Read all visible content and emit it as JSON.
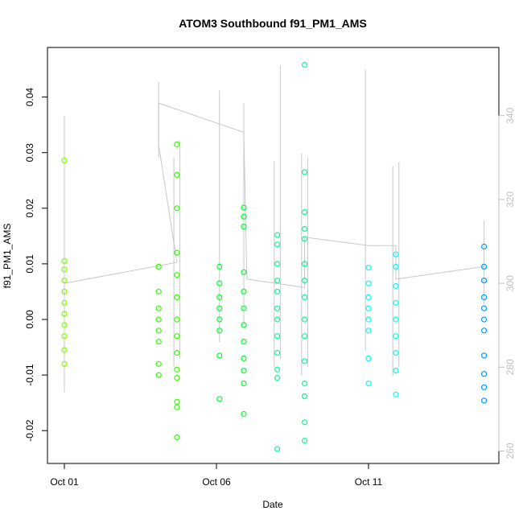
{
  "chart_data": {
    "type": "scatter",
    "title": "ATOM3 Southbound f91_PM1_AMS",
    "xlabel": "Date",
    "ylabel": "f91_PM1_AMS",
    "x_ticks": [
      "Oct 01",
      "Oct 06",
      "Oct 11"
    ],
    "x_tick_days": [
      1,
      6,
      11
    ],
    "xlim": [
      0.0,
      15.6
    ],
    "ylim": [
      -0.026,
      0.047
    ],
    "y_ticks": [
      -0.02,
      -0.01,
      0.0,
      0.01,
      0.02,
      0.03,
      0.04
    ],
    "y2_ticks": [
      260,
      280,
      300,
      320,
      340
    ],
    "y2lim": [
      256,
      355
    ],
    "grid": false,
    "series": [
      {
        "color": "#7FFF00",
        "x": [
          1.0,
          1.0,
          1.0,
          1.0,
          1.0,
          1.0,
          1.0,
          1.0,
          1.0,
          1.0,
          1.0
        ],
        "y": [
          0.0286,
          0.0105,
          0.009,
          0.007,
          0.005,
          0.003,
          0.001,
          -0.001,
          -0.003,
          -0.0055,
          -0.008
        ]
      },
      {
        "color": "#33FF00",
        "x": [
          4.1,
          4.1,
          4.1,
          4.1,
          4.1,
          4.1,
          4.1,
          4.1,
          4.7,
          4.7,
          4.7,
          4.7,
          4.7,
          4.7,
          4.7,
          4.7,
          4.7,
          4.7,
          4.7,
          4.7,
          4.7,
          4.7
        ],
        "y": [
          0.0095,
          0.005,
          0.002,
          0.0,
          -0.002,
          -0.004,
          -0.008,
          -0.01,
          0.0315,
          0.026,
          0.02,
          0.012,
          0.008,
          0.004,
          0.0,
          -0.003,
          -0.006,
          -0.009,
          -0.0105,
          -0.0148,
          -0.0158,
          -0.0212
        ]
      },
      {
        "color": "#00FF33",
        "x": [
          6.1,
          6.1,
          6.1,
          6.1,
          6.1,
          6.1,
          6.1,
          6.1,
          6.9,
          6.9,
          6.9,
          6.9,
          6.9,
          6.9,
          6.9,
          6.9,
          6.9,
          6.9,
          6.9,
          6.9
        ],
        "y": [
          0.0095,
          0.0065,
          0.004,
          0.002,
          0.0,
          -0.002,
          -0.0065,
          -0.0143,
          0.0201,
          0.0185,
          0.0167,
          0.0085,
          0.005,
          0.002,
          -0.001,
          -0.004,
          -0.007,
          -0.0092,
          -0.0115,
          -0.017
        ]
      },
      {
        "color": "#00FF99",
        "x": [
          8.0,
          8.0,
          8.0,
          8.0,
          8.0,
          8.0,
          8.0,
          8.0,
          8.0,
          8.0,
          8.0,
          8.0
        ],
        "y": [
          0.0152,
          0.0135,
          0.01,
          0.007,
          0.005,
          0.002,
          0.0,
          -0.003,
          -0.006,
          -0.009,
          -0.0105,
          -0.0233
        ]
      },
      {
        "color": "#00FF99",
        "x": [
          8.9,
          8.9,
          8.9,
          8.9,
          8.9,
          8.9,
          8.9,
          8.9,
          8.9,
          8.9,
          8.9,
          8.9,
          8.9,
          8.9,
          8.9
        ],
        "y": [
          0.0458,
          0.0265,
          0.0193,
          0.0163,
          0.0145,
          0.01,
          0.007,
          0.004,
          0.0,
          -0.003,
          -0.0075,
          -0.0115,
          -0.0138,
          -0.0185,
          -0.0218
        ]
      },
      {
        "color": "#00FFFF",
        "x": [
          11.0,
          11.0,
          11.0,
          11.0,
          11.0,
          11.0,
          11.0,
          11.0,
          11.9,
          11.9,
          11.9,
          11.9,
          11.9,
          11.9,
          11.9,
          11.9,
          11.9
        ],
        "y": [
          0.0093,
          0.0065,
          0.004,
          0.002,
          0.0,
          -0.002,
          -0.007,
          -0.0115,
          0.0117,
          0.0095,
          0.006,
          0.003,
          0.0,
          -0.003,
          -0.006,
          -0.0092,
          -0.0135
        ]
      },
      {
        "color": "#0099FF",
        "x": [
          14.8,
          14.8,
          14.8,
          14.8,
          14.8,
          14.8,
          14.8,
          14.8,
          14.8,
          14.8,
          14.8
        ],
        "y": [
          0.0131,
          0.0095,
          0.007,
          0.004,
          0.002,
          0.0,
          -0.002,
          -0.0065,
          -0.0098,
          -0.0122,
          -0.0146
        ]
      }
    ]
  }
}
